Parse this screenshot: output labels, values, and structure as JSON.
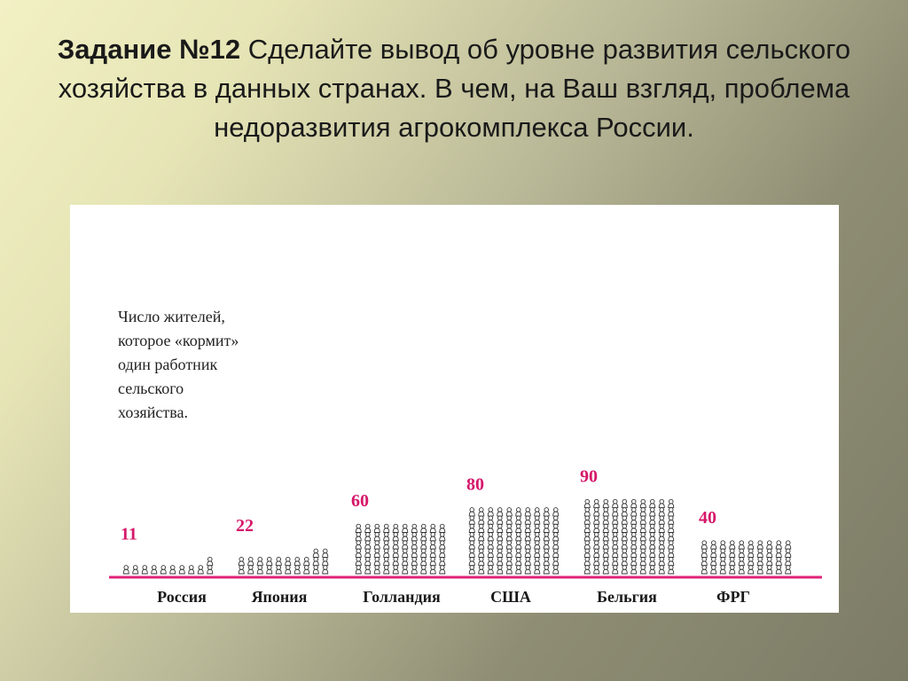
{
  "slide": {
    "title_bold": "Задание №12",
    "title_rest": " Сделайте вывод об уровне развития сельского хозяйства в данных странах. В чем, на Ваш взгляд, проблема недоразвития агрокомплекса России."
  },
  "chart_data": {
    "type": "bar",
    "caption_lines": [
      "Число жителей,",
      "которое «кормит»",
      "один работник",
      "сельского",
      "хозяйства."
    ],
    "categories": [
      "Россия",
      "Япония",
      "Голландия",
      "США",
      "Бельгия",
      "ФРГ"
    ],
    "values": [
      11,
      22,
      60,
      80,
      90,
      40
    ],
    "colors": {
      "value_label": "#d6186a",
      "baseline": "#e0237a",
      "figure": "#333333",
      "category": "#1a1a1a"
    },
    "icon": "person-figure"
  }
}
